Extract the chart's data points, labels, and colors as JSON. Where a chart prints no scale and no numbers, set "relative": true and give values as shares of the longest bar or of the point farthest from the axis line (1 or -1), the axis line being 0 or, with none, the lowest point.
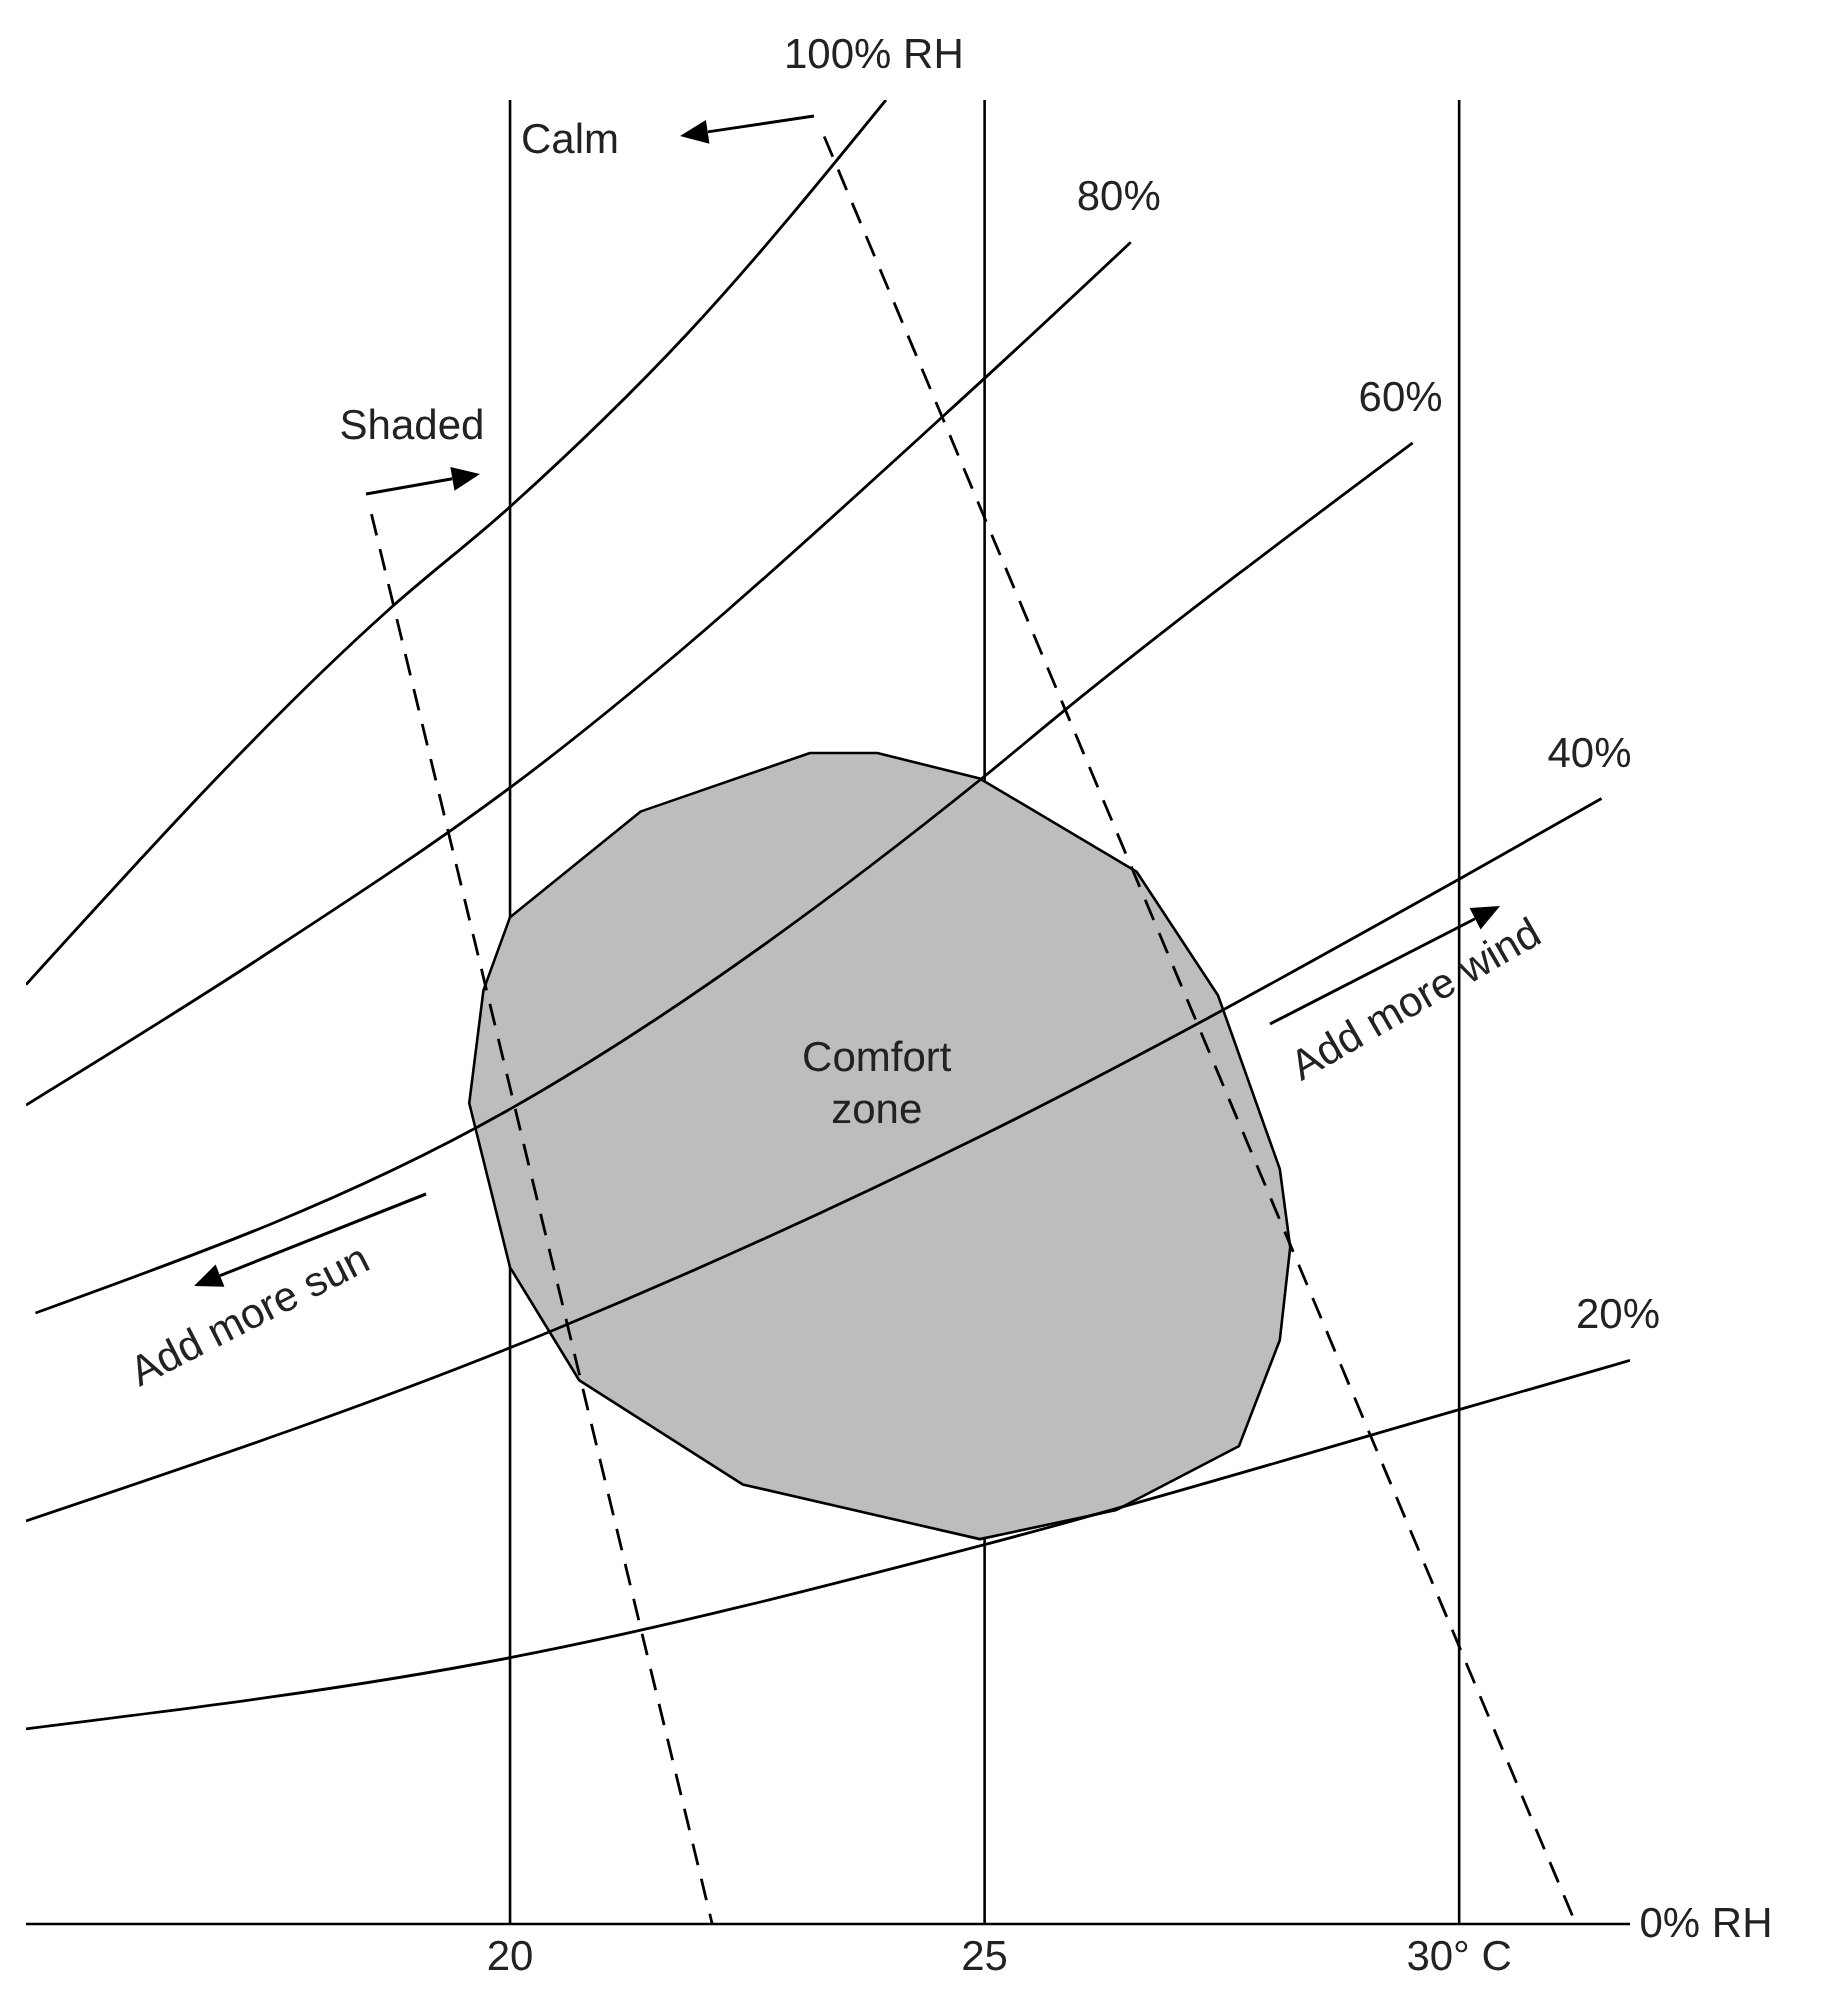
{
  "chart_data": {
    "type": "line",
    "relative": true,
    "xlim": [
      14.9,
      31.8
    ],
    "xticks": [
      20,
      25,
      {
        "value": 30,
        "label": "30° C"
      }
    ],
    "series": [
      {
        "name": "100% RH",
        "color": "#000000",
        "x": [
          14.9,
          18.71,
          20,
          21.87,
          23.96
        ],
        "values": [
          0.515,
          0.72,
          0.777,
          0.872,
          1
        ]
      },
      {
        "name": "80%",
        "color": "#000000",
        "x": [
          14.9,
          17.35,
          20,
          24.97,
          26.54
        ],
        "values": [
          0.449,
          0.529,
          0.623,
          0.846,
          0.922
        ]
      },
      {
        "name": "60%",
        "color": "#000000",
        "x": [
          15,
          19.94,
          24.97,
          25.81,
          29.51
        ],
        "values": [
          0.335,
          0.445,
          0.628,
          0.664,
          0.812
        ]
      },
      {
        "name": "40%",
        "color": "#000000",
        "x": [
          14.9,
          20.43,
          25,
          30.04,
          31.5
        ],
        "values": [
          0.221,
          0.325,
          0.433,
          0.574,
          0.617
        ]
      },
      {
        "name": "20%",
        "color": "#000000",
        "x": [
          14.9,
          20,
          25,
          30,
          31.8
        ],
        "values": [
          0.107,
          0.146,
          0.208,
          0.282,
          0.309
        ]
      },
      {
        "color": "#000000",
        "line_style": "dashed",
        "x": [
          18.54,
          22.13
        ],
        "values": [
          0.773,
          0
        ]
      },
      {
        "color": "#000000",
        "line_style": "dashed",
        "x": [
          23.31,
          31.23
        ],
        "values": [
          0.98,
          0
        ]
      },
      {
        "type": "area",
        "name": "Comfort zone",
        "color": "#bdbdbd",
        "x": [
          23.87,
          24.95,
          26.6,
          27.46,
          28.11,
          28.22,
          28.11,
          27.68,
          26.39,
          24.95,
          22.45,
          20.73,
          20,
          19.57,
          19.72,
          20,
          21.38,
          23.16
        ],
        "values": [
          0.642,
          0.628,
          0.577,
          0.509,
          0.414,
          0.371,
          0.32,
          0.262,
          0.227,
          0.211,
          0.241,
          0.298,
          0.36,
          0.45,
          0.512,
          0.552,
          0.61,
          0.642
        ]
      }
    ],
    "grid": "x",
    "annotations": [
      "Calm",
      "Shaded",
      "Add more sun",
      "Add more wind",
      "0% RH"
    ]
  }
}
